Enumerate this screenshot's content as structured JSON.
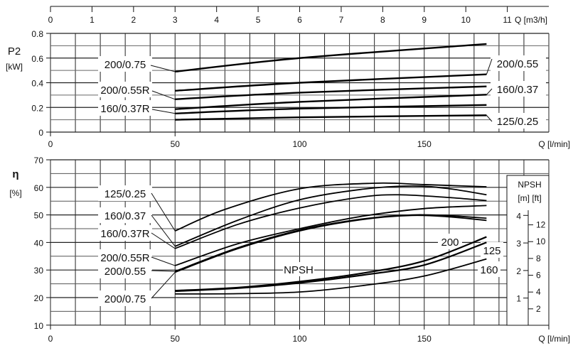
{
  "chart_data": [
    {
      "type": "line",
      "ylabel": "P2",
      "yunit": "[kW]",
      "xlabel": "Q [l/min]",
      "x2label": "Q [m3/h]",
      "xlim": [
        0,
        200
      ],
      "ylim": [
        0,
        0.8
      ],
      "x2lim": [
        0,
        12
      ],
      "xticks": [
        "0",
        "50",
        "100",
        "150"
      ],
      "x2ticks": [
        "0",
        "1",
        "2",
        "3",
        "4",
        "5",
        "6",
        "7",
        "8",
        "9",
        "10",
        "11"
      ],
      "yticks": [
        "0",
        "0.2",
        "0.4",
        "0.6",
        "0.8"
      ],
      "grid": true,
      "series": [
        {
          "name": "200/0.75",
          "points": [
            [
              50,
              0.49
            ],
            [
              100,
              0.6
            ],
            [
              175,
              0.714
            ]
          ]
        },
        {
          "name": "200/0.55",
          "points": [
            [
              50,
              0.335
            ],
            [
              100,
              0.4
            ],
            [
              175,
              0.468
            ]
          ]
        },
        {
          "name": "200/0.55R",
          "points": [
            [
              50,
              0.266
            ],
            [
              100,
              0.32
            ],
            [
              175,
              0.37
            ]
          ]
        },
        {
          "name": "160/0.37",
          "points": [
            [
              50,
              0.186
            ],
            [
              100,
              0.245
            ],
            [
              175,
              0.303
            ]
          ]
        },
        {
          "name": "160/0.37R",
          "points": [
            [
              50,
              0.151
            ],
            [
              100,
              0.19
            ],
            [
              175,
              0.22
            ]
          ]
        },
        {
          "name": "125/0.25",
          "points": [
            [
              50,
              0.1
            ],
            [
              100,
              0.12
            ],
            [
              175,
              0.136
            ]
          ]
        }
      ]
    },
    {
      "type": "line",
      "ylabel": "η",
      "yunit": "[%]",
      "xlabel": "Q [l/min]",
      "xlim": [
        0,
        200
      ],
      "ylim": [
        10,
        70
      ],
      "xticks": [
        "0",
        "50",
        "100",
        "150"
      ],
      "yticks": [
        "10",
        "20",
        "30",
        "40",
        "50",
        "60",
        "70"
      ],
      "grid": true,
      "series": [
        {
          "name": "125/0.25",
          "points": [
            [
              50,
              44.2
            ],
            [
              70,
              52
            ],
            [
              100,
              59.5
            ],
            [
              130,
              61.5
            ],
            [
              150,
              61
            ],
            [
              175,
              60.2
            ]
          ]
        },
        {
          "name": "160/0.37",
          "points": [
            [
              50,
              38.6
            ],
            [
              75,
              48
            ],
            [
              100,
              55.5
            ],
            [
              125,
              59.3
            ],
            [
              145,
              60.5
            ],
            [
              160,
              59.5
            ],
            [
              175,
              57.3
            ]
          ]
        },
        {
          "name": "160/0.37R",
          "points": [
            [
              50,
              37.8
            ],
            [
              75,
              46.5
            ],
            [
              100,
              52.5
            ],
            [
              125,
              56.5
            ],
            [
              140,
              57.3
            ],
            [
              160,
              56.3
            ],
            [
              175,
              55.2
            ]
          ]
        },
        {
          "name": "200/0.55R",
          "points": [
            [
              50,
              31.6
            ],
            [
              75,
              39.5
            ],
            [
              100,
              45
            ],
            [
              125,
              49.5
            ],
            [
              150,
              52.3
            ],
            [
              175,
              53.4
            ]
          ]
        },
        {
          "name": "200/0.55",
          "points": [
            [
              50,
              29.5
            ],
            [
              75,
              38
            ],
            [
              100,
              44.5
            ],
            [
              125,
              48.5
            ],
            [
              145,
              50
            ],
            [
              160,
              49.7
            ],
            [
              175,
              48.8
            ]
          ]
        },
        {
          "name": "200/0.75",
          "points": [
            [
              50,
              29.2
            ],
            [
              75,
              37.7
            ],
            [
              100,
              44.2
            ],
            [
              125,
              48.3
            ],
            [
              145,
              49.8
            ],
            [
              160,
              49.3
            ],
            [
              175,
              48
            ]
          ]
        }
      ],
      "npsh": {
        "title": "NPSH",
        "units": "[m]  [ft]",
        "label": "NPSH",
        "m_ticks": [
          "1",
          "2",
          "3",
          "4"
        ],
        "ft_ticks": [
          "2",
          "4",
          "6",
          "8",
          "10",
          "12"
        ],
        "series": [
          {
            "name": "200",
            "points": [
              [
                50,
                1.27
              ],
              [
                75,
                1.38
              ],
              [
                100,
                1.6
              ],
              [
                125,
                1.9
              ],
              [
                150,
                2.35
              ],
              [
                175,
                3.22
              ]
            ]
          },
          {
            "name": "125",
            "points": [
              [
                50,
                1.25
              ],
              [
                75,
                1.36
              ],
              [
                100,
                1.55
              ],
              [
                125,
                1.83
              ],
              [
                150,
                2.2
              ],
              [
                175,
                3.02
              ]
            ]
          },
          {
            "name": "160",
            "points": [
              [
                50,
                1.15
              ],
              [
                75,
                1.16
              ],
              [
                100,
                1.22
              ],
              [
                125,
                1.45
              ],
              [
                150,
                1.8
              ],
              [
                175,
                2.42
              ]
            ]
          }
        ]
      }
    }
  ]
}
